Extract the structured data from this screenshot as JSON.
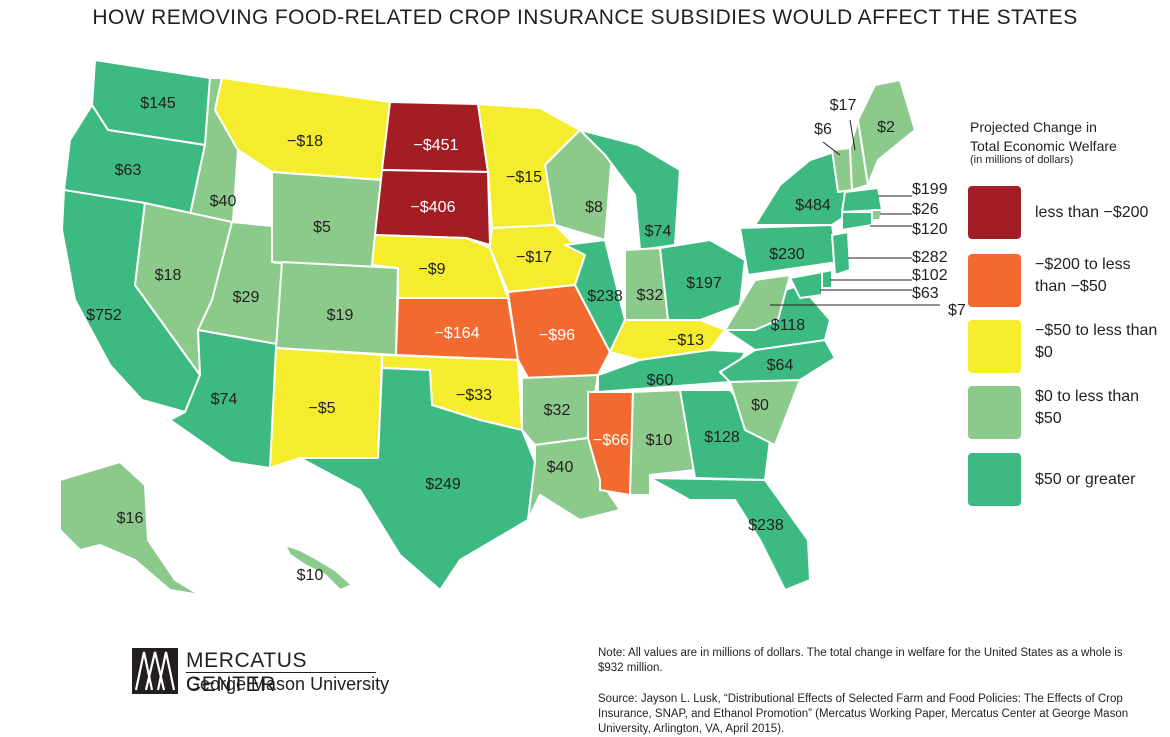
{
  "title": "HOW REMOVING FOOD-RELATED CROP INSURANCE SUBSIDIES WOULD AFFECT THE STATES",
  "colors": {
    "dark_red": "#a31d24",
    "orange": "#f26a30",
    "yellow": "#f4ec2d",
    "light_green": "#8cca8c",
    "green": "#3dba82"
  },
  "legend": {
    "title_line1": "Projected Change in",
    "title_line2": "Total Economic Welfare",
    "subtitle": "(in millions of dollars)",
    "items": [
      {
        "label": "less than −$200",
        "color": "#a31d24"
      },
      {
        "label": "−$200 to less than −$50",
        "color": "#f26a30"
      },
      {
        "label": "−$50 to less than $0",
        "color": "#f4ec2d"
      },
      {
        "label": "$0 to less than $50",
        "color": "#8cca8c"
      },
      {
        "label": "$50 or greater",
        "color": "#3dba82"
      }
    ]
  },
  "states": [
    {
      "abbr": "WA",
      "value": "$145"
    },
    {
      "abbr": "OR",
      "value": "$63"
    },
    {
      "abbr": "CA",
      "value": "$752"
    },
    {
      "abbr": "ID",
      "value": "$40"
    },
    {
      "abbr": "NV",
      "value": "$18"
    },
    {
      "abbr": "MT",
      "value": "−$18"
    },
    {
      "abbr": "WY",
      "value": "$5"
    },
    {
      "abbr": "UT",
      "value": "$29"
    },
    {
      "abbr": "AZ",
      "value": "$74"
    },
    {
      "abbr": "CO",
      "value": "$19"
    },
    {
      "abbr": "NM",
      "value": "−$5"
    },
    {
      "abbr": "ND",
      "value": "−$451"
    },
    {
      "abbr": "SD",
      "value": "−$406"
    },
    {
      "abbr": "NE",
      "value": "−$9"
    },
    {
      "abbr": "KS",
      "value": "−$164"
    },
    {
      "abbr": "OK",
      "value": "−$33"
    },
    {
      "abbr": "TX",
      "value": "$249"
    },
    {
      "abbr": "MN",
      "value": "−$15"
    },
    {
      "abbr": "IA",
      "value": "−$17"
    },
    {
      "abbr": "MO",
      "value": "−$96"
    },
    {
      "abbr": "AR",
      "value": "$32"
    },
    {
      "abbr": "LA",
      "value": "$40"
    },
    {
      "abbr": "WI",
      "value": "$8"
    },
    {
      "abbr": "IL",
      "value": "$238"
    },
    {
      "abbr": "MI",
      "value": "$74"
    },
    {
      "abbr": "IN",
      "value": "$32"
    },
    {
      "abbr": "OH",
      "value": "$197"
    },
    {
      "abbr": "KY",
      "value": "−$13"
    },
    {
      "abbr": "TN",
      "value": "$60"
    },
    {
      "abbr": "MS",
      "value": "−$66"
    },
    {
      "abbr": "AL",
      "value": "$10"
    },
    {
      "abbr": "GA",
      "value": "$128"
    },
    {
      "abbr": "FL",
      "value": "$238"
    },
    {
      "abbr": "SC",
      "value": "$0"
    },
    {
      "abbr": "NC",
      "value": "$64"
    },
    {
      "abbr": "VA",
      "value": "$118"
    },
    {
      "abbr": "WV",
      "value": "$7"
    },
    {
      "abbr": "PA",
      "value": "$230"
    },
    {
      "abbr": "NY",
      "value": "$484"
    },
    {
      "abbr": "VT",
      "value": "$6"
    },
    {
      "abbr": "NH",
      "value": "$17"
    },
    {
      "abbr": "ME",
      "value": "$2"
    },
    {
      "abbr": "MA",
      "value": "$199"
    },
    {
      "abbr": "RI",
      "value": "$26"
    },
    {
      "abbr": "CT",
      "value": "$120"
    },
    {
      "abbr": "NJ",
      "value": "$282"
    },
    {
      "abbr": "DE",
      "value": "$102"
    },
    {
      "abbr": "MD",
      "value": "$63"
    },
    {
      "abbr": "AK",
      "value": "$16"
    },
    {
      "abbr": "HI",
      "value": "$10"
    }
  ],
  "logo": {
    "name": "MERCATUS CENTER",
    "university": "George Mason University"
  },
  "note": "Note: All values are in millions of dollars. The total change in welfare for the United States as a whole is $932 million.",
  "source": "Source: Jayson L. Lusk, “Distributional Effects of Selected Farm and Food Policies: The Effects of Crop Insurance, SNAP, and Ethanol Promotion” (Mercatus Working Paper, Mercatus Center at George Mason University, Arlington, VA, April 2015)."
}
